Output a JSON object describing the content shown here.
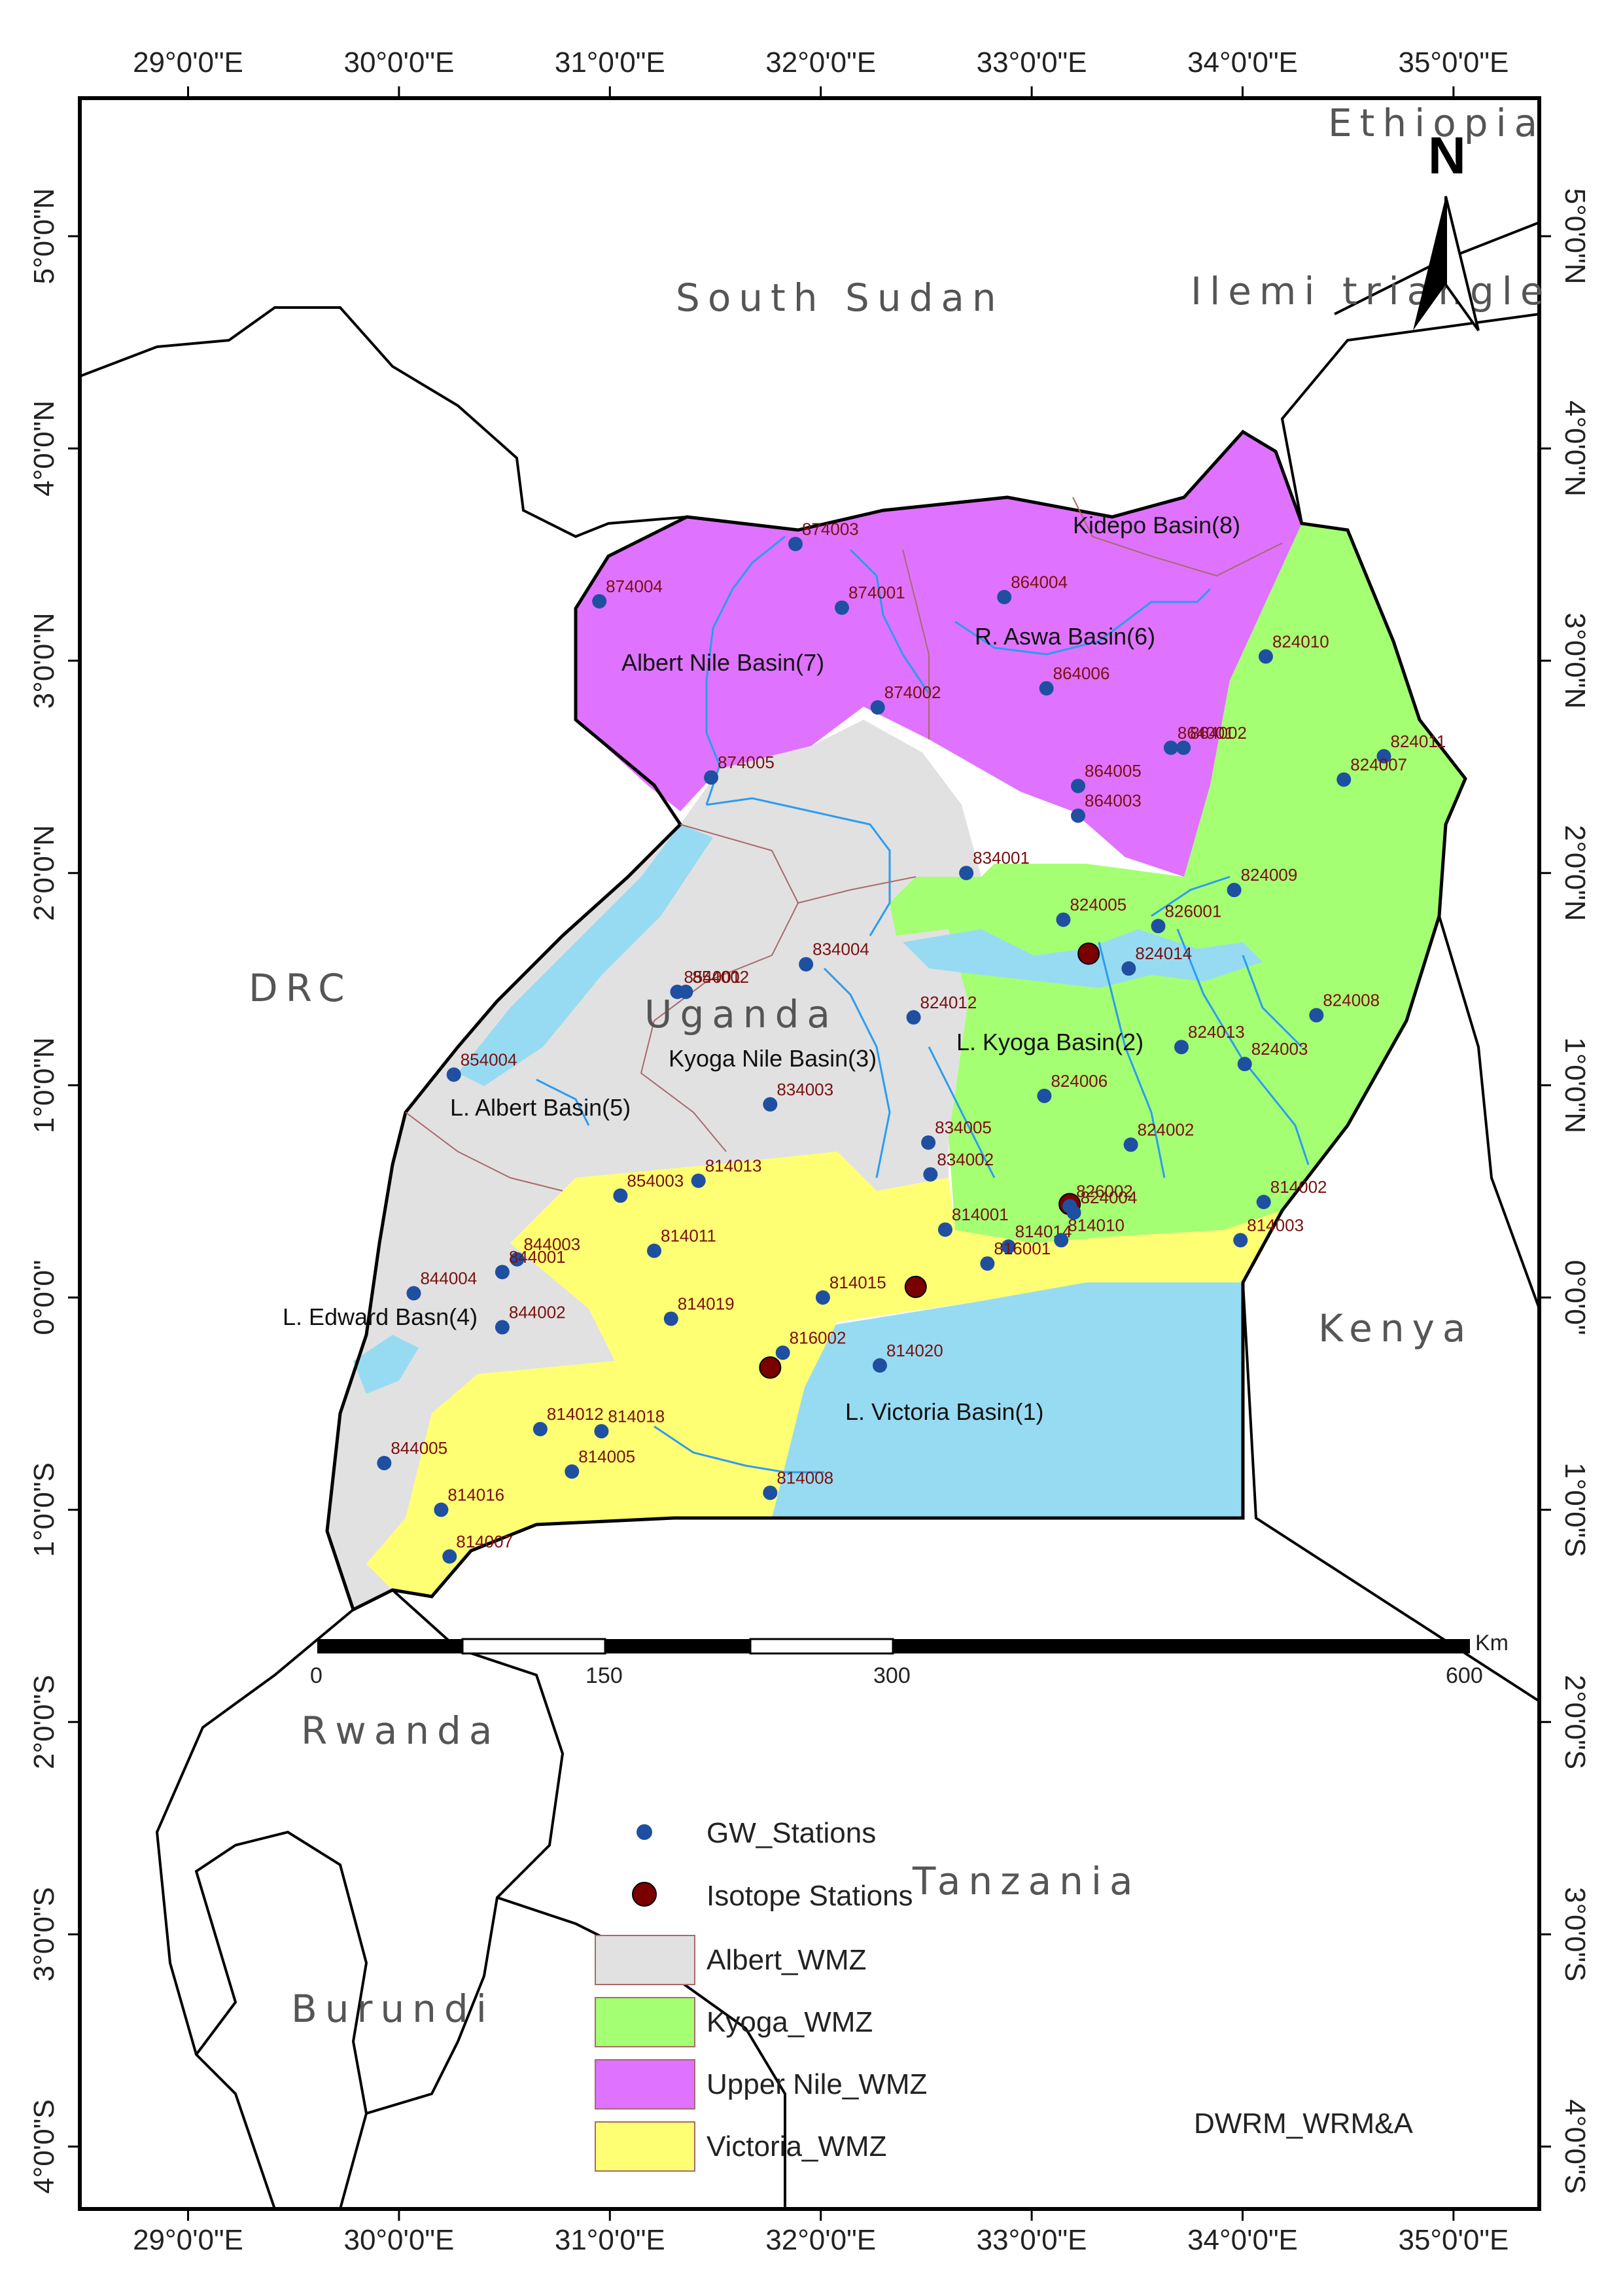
{
  "axes": {
    "top": [
      "29°0'0\"E",
      "30°0'0\"E",
      "31°0'0\"E",
      "32°0'0\"E",
      "33°0'0\"E",
      "34°0'0\"E",
      "35°0'0\"E"
    ],
    "bottom": [
      "29°0'0\"E",
      "30°0'0\"E",
      "31°0'0\"E",
      "32°0'0\"E",
      "33°0'0\"E",
      "34°0'0\"E",
      "35°0'0\"E"
    ],
    "left": [
      "5°0'0\"N",
      "4°0'0\"N",
      "3°0'0\"N",
      "2°0'0\"N",
      "1°0'0\"N",
      "0°0'0\"",
      "1°0'0\"S",
      "2°0'0\"S",
      "3°0'0\"S",
      "4°0'0\"S"
    ],
    "right": [
      "5°0'0\"N",
      "4°0'0\"N",
      "3°0'0\"N",
      "2°0'0\"N",
      "1°0'0\"N",
      "0°0'0\"",
      "1°0'0\"S",
      "2°0'0\"S",
      "3°0'0\"S",
      "4°0'0\"S"
    ]
  },
  "countries": {
    "ethiopia": "Ethiopia",
    "south_sudan": "South Sudan",
    "ilemi": "Ilemi triangle",
    "drc": "DRC",
    "uganda": "Uganda",
    "kenya": "Kenya",
    "rwanda": "Rwanda",
    "tanzania": "Tanzania",
    "burundi": "Burundi"
  },
  "basins": {
    "b1": "L. Victoria Basin(1)",
    "b2": "L. Kyoga Basin(2)",
    "b3": "Kyoga Nile Basin(3)",
    "b4": "L. Edward Basn(4)",
    "b5": "L. Albert Basin(5)",
    "b6": "R. Aswa Basin(6)",
    "b7": "Albert Nile Basin(7)",
    "b8": "Kidepo Basin(8)"
  },
  "north_arrow": "N",
  "scale": {
    "unit": "Km",
    "labels": [
      "0",
      "150",
      "300",
      "600"
    ]
  },
  "legend": {
    "gw": "GW_Stations",
    "iso": "Isotope Stations",
    "albert": "Albert_WMZ",
    "kyoga": "Kyoga_WMZ",
    "upper_nile": "Upper Nile_WMZ",
    "victoria": "Victoria_WMZ"
  },
  "colors": {
    "albert": "#e1e1e1",
    "kyoga": "#a5ff73",
    "upper_nile": "#df73ff",
    "victoria": "#ffff73",
    "water": "#97dbf2",
    "gw_dot": "#1f4fa0",
    "iso_dot": "#7a0000"
  },
  "credit": "DWRM_WRM&A",
  "gw_stations": [
    {
      "id": "874003",
      "lon": 31.88,
      "lat": 3.55
    },
    {
      "id": "874004",
      "lon": 30.95,
      "lat": 3.28
    },
    {
      "id": "874001",
      "lon": 32.1,
      "lat": 3.25
    },
    {
      "id": "874002",
      "lon": 32.27,
      "lat": 2.78
    },
    {
      "id": "874005",
      "lon": 31.48,
      "lat": 2.45
    },
    {
      "id": "864004",
      "lon": 32.87,
      "lat": 3.3
    },
    {
      "id": "864006",
      "lon": 33.07,
      "lat": 2.87
    },
    {
      "id": "864001",
      "lon": 33.66,
      "lat": 2.59
    },
    {
      "id": "864002",
      "lon": 33.72,
      "lat": 2.59
    },
    {
      "id": "864005",
      "lon": 33.22,
      "lat": 2.41
    },
    {
      "id": "864003",
      "lon": 33.22,
      "lat": 2.27
    },
    {
      "id": "824010",
      "lon": 34.11,
      "lat": 3.02
    },
    {
      "id": "824011",
      "lon": 34.67,
      "lat": 2.55
    },
    {
      "id": "824007",
      "lon": 34.48,
      "lat": 2.44
    },
    {
      "id": "824009",
      "lon": 33.96,
      "lat": 1.92
    },
    {
      "id": "834001",
      "lon": 32.69,
      "lat": 2.0
    },
    {
      "id": "824005",
      "lon": 33.15,
      "lat": 1.78
    },
    {
      "id": "826001",
      "lon": 33.6,
      "lat": 1.75
    },
    {
      "id": "824014",
      "lon": 33.46,
      "lat": 1.55
    },
    {
      "id": "824008",
      "lon": 34.35,
      "lat": 1.33
    },
    {
      "id": "824013",
      "lon": 33.71,
      "lat": 1.18
    },
    {
      "id": "824003",
      "lon": 34.01,
      "lat": 1.1
    },
    {
      "id": "824006",
      "lon": 33.06,
      "lat": 0.95
    },
    {
      "id": "824002",
      "lon": 33.47,
      "lat": 0.72
    },
    {
      "id": "814002",
      "lon": 34.1,
      "lat": 0.45
    },
    {
      "id": "814003",
      "lon": 33.99,
      "lat": 0.27
    },
    {
      "id": "834004",
      "lon": 31.93,
      "lat": 1.57
    },
    {
      "id": "824012",
      "lon": 32.44,
      "lat": 1.32
    },
    {
      "id": "854001",
      "lon": 31.32,
      "lat": 1.44
    },
    {
      "id": "854002",
      "lon": 31.36,
      "lat": 1.44
    },
    {
      "id": "854004",
      "lon": 30.26,
      "lat": 1.05
    },
    {
      "id": "834003",
      "lon": 31.76,
      "lat": 0.91
    },
    {
      "id": "834005",
      "lon": 32.51,
      "lat": 0.73
    },
    {
      "id": "834002",
      "lon": 32.52,
      "lat": 0.58
    },
    {
      "id": "854003",
      "lon": 31.05,
      "lat": 0.48
    },
    {
      "id": "814013",
      "lon": 31.42,
      "lat": 0.55
    },
    {
      "id": "814001",
      "lon": 32.59,
      "lat": 0.32
    },
    {
      "id": "814014",
      "lon": 32.89,
      "lat": 0.24
    },
    {
      "id": "814010",
      "lon": 33.14,
      "lat": 0.27
    },
    {
      "id": "826002",
      "lon": 33.18,
      "lat": 0.43
    },
    {
      "id": "824004",
      "lon": 33.2,
      "lat": 0.4
    },
    {
      "id": "814011",
      "lon": 31.21,
      "lat": 0.22
    },
    {
      "id": "816001",
      "lon": 32.79,
      "lat": 0.16
    },
    {
      "id": "814015",
      "lon": 32.01,
      "lat": 0.0
    },
    {
      "id": "814019",
      "lon": 31.29,
      "lat": -0.1
    },
    {
      "id": "844003",
      "lon": 30.56,
      "lat": 0.18
    },
    {
      "id": "844001",
      "lon": 30.49,
      "lat": 0.12
    },
    {
      "id": "844004",
      "lon": 30.07,
      "lat": 0.02
    },
    {
      "id": "844002",
      "lon": 30.49,
      "lat": -0.14
    },
    {
      "id": "816002",
      "lon": 31.82,
      "lat": -0.26
    },
    {
      "id": "814020",
      "lon": 32.28,
      "lat": -0.32
    },
    {
      "id": "814012",
      "lon": 30.67,
      "lat": -0.62
    },
    {
      "id": "814018",
      "lon": 30.96,
      "lat": -0.63
    },
    {
      "id": "814005",
      "lon": 30.82,
      "lat": -0.82
    },
    {
      "id": "844005",
      "lon": 29.93,
      "lat": -0.78
    },
    {
      "id": "814016",
      "lon": 30.2,
      "lat": -1.0
    },
    {
      "id": "814008",
      "lon": 31.76,
      "lat": -0.92
    },
    {
      "id": "814007",
      "lon": 30.24,
      "lat": -1.22
    }
  ],
  "isotope_stations": [
    {
      "id": "826001",
      "lon": 33.27,
      "lat": 1.62
    },
    {
      "id": "826002",
      "lon": 33.18,
      "lat": 0.44
    },
    {
      "id": "816001",
      "lon": 32.45,
      "lat": 0.05
    },
    {
      "id": "816002",
      "lon": 31.76,
      "lat": -0.33
    }
  ]
}
